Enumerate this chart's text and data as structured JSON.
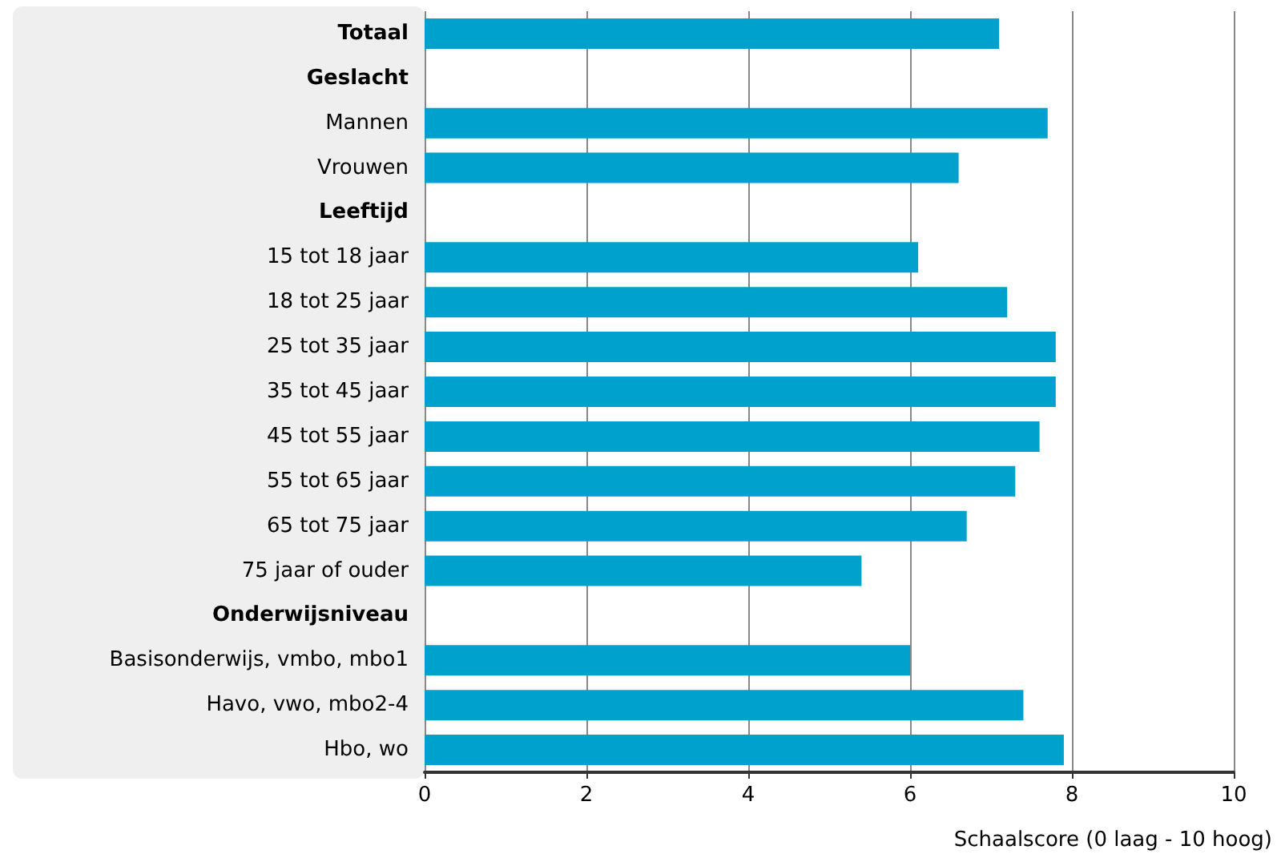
{
  "chart_data": {
    "type": "bar",
    "orientation": "horizontal",
    "categories": [
      "Totaal",
      "Geslacht",
      "Mannen",
      "Vrouwen",
      "Leeftijd",
      "15 tot 18 jaar",
      "18 tot 25 jaar",
      "25 tot 35 jaar",
      "35 tot 45 jaar",
      "45 tot 55 jaar",
      "55 tot 65 jaar",
      "65 tot 75 jaar",
      "75 jaar of ouder",
      "Onderwijsniveau",
      "Basisonderwijs, vmbo, mbo1",
      "Havo, vwo, mbo2-4",
      "Hbo, wo"
    ],
    "values": [
      7.1,
      null,
      7.7,
      6.6,
      null,
      6.1,
      7.2,
      7.8,
      7.8,
      7.6,
      7.3,
      6.7,
      5.4,
      null,
      6.0,
      7.4,
      7.9
    ],
    "color": "#00a1cd",
    "xlim": [
      0,
      10
    ],
    "xticks": [
      0,
      2,
      4,
      6,
      8,
      10
    ],
    "xlabel": "Schaalscore (0 laag - 10 hoog)",
    "grid": "x"
  }
}
